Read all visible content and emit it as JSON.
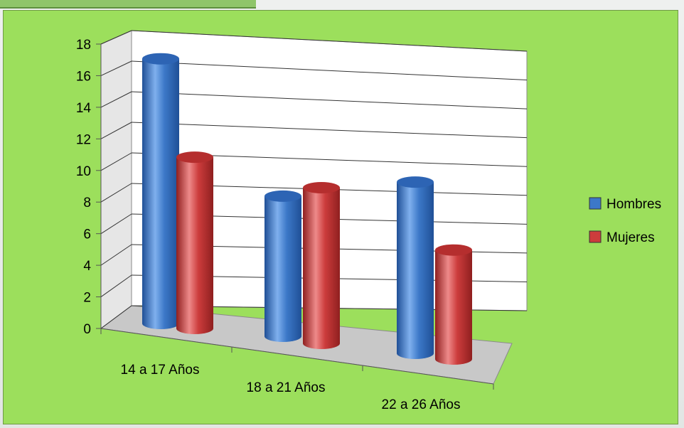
{
  "chart_data": {
    "type": "bar",
    "style": "3d-cylinder",
    "categories": [
      "14 a 17 Años",
      "18 a 21 Años",
      "22 a 26 Años"
    ],
    "series": [
      {
        "name": "Hombres",
        "values": [
          17,
          9,
          11
        ],
        "color": "#3c78c8"
      },
      {
        "name": "Mujeres",
        "values": [
          11,
          10,
          7
        ],
        "color": "#cc3c3c"
      }
    ],
    "yticks": [
      0,
      2,
      4,
      6,
      8,
      10,
      12,
      14,
      16,
      18
    ],
    "ylim": [
      0,
      18
    ],
    "grid": true,
    "legend": "right",
    "background": "#9cdf5c",
    "wall_color": "#ffffff",
    "floor_color": "#c8c8c8"
  }
}
